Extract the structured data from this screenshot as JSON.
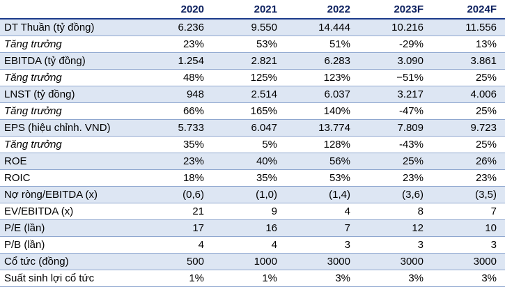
{
  "table": {
    "columns": [
      "",
      "2020",
      "2021",
      "2022",
      "2023F",
      "2024F"
    ],
    "rows": [
      {
        "label": "DT Thuần (tỷ đồng)",
        "values": [
          "6.236",
          "9.550",
          "14.444",
          "10.216",
          "11.556"
        ]
      },
      {
        "label": "Tăng trưởng",
        "values": [
          "23%",
          "53%",
          "51%",
          "-29%",
          "13%"
        ]
      },
      {
        "label": "EBITDA (tỷ đồng)",
        "values": [
          "1.254",
          "2.821",
          "6.283",
          "3.090",
          "3.861"
        ]
      },
      {
        "label": "Tăng trưởng",
        "values": [
          "48%",
          "125%",
          "123%",
          "−51%",
          "25%"
        ]
      },
      {
        "label": "LNST (tỷ đồng)",
        "values": [
          "948",
          "2.514",
          "6.037",
          "3.217",
          "4.006"
        ]
      },
      {
        "label": "Tăng trưởng",
        "values": [
          "66%",
          "165%",
          "140%",
          "-47%",
          "25%"
        ]
      },
      {
        "label": "EPS (hiệu chỉnh. VND)",
        "values": [
          "5.733",
          "6.047",
          "13.774",
          "7.809",
          "9.723"
        ]
      },
      {
        "label": "Tăng trưởng",
        "values": [
          "35%",
          "5%",
          "128%",
          "-43%",
          "25%"
        ]
      },
      {
        "label": "ROE",
        "values": [
          "23%",
          "40%",
          "56%",
          "25%",
          "26%"
        ]
      },
      {
        "label": "ROIC",
        "values": [
          "18%",
          "35%",
          "53%",
          "23%",
          "23%"
        ]
      },
      {
        "label": "Nợ ròng/EBITDA (x)",
        "values": [
          "(0,6)",
          "(1,0)",
          "(1,4)",
          "(3,6)",
          "(3,5)"
        ]
      },
      {
        "label": "EV/EBITDA (x)",
        "values": [
          "21",
          "9",
          "4",
          "8",
          "7"
        ]
      },
      {
        "label": "P/E (lần)",
        "values": [
          "17",
          "16",
          "7",
          "12",
          "10"
        ]
      },
      {
        "label": "P/B (lần)",
        "values": [
          "4",
          "4",
          "3",
          "3",
          "3"
        ]
      },
      {
        "label": "Cổ tức (đồng)",
        "values": [
          "500",
          "1000",
          "3000",
          "3000",
          "3000"
        ]
      },
      {
        "label": "Suất sinh lợi cổ tức",
        "values": [
          "1%",
          "1%",
          "3%",
          "3%",
          "3%"
        ]
      }
    ]
  },
  "colors": {
    "header_text": "#0b1f5e",
    "shaded_row": "#dde6f3",
    "rule": "#8fa7cf"
  }
}
